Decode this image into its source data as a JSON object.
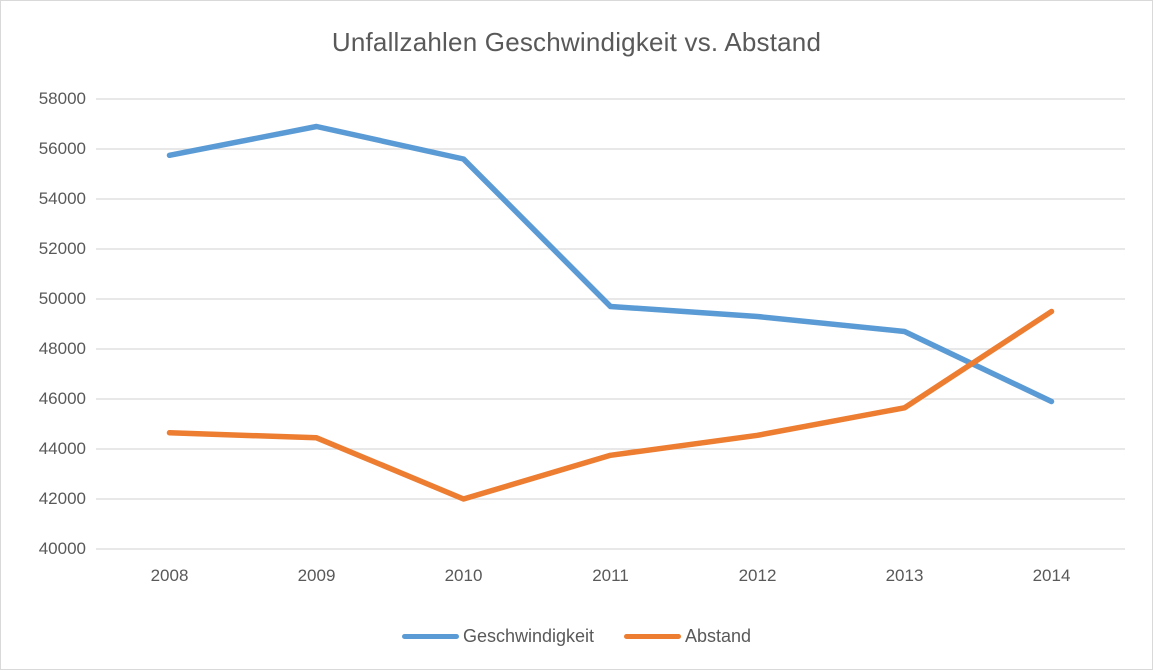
{
  "title": "Unfallzahlen Geschwindigkeit vs. Abstand",
  "colors": {
    "series_geschwindigkeit": "#5B9BD5",
    "series_abstand": "#ED7D31",
    "gridline": "#D9D9D9",
    "text": "#595959",
    "background": "#FFFFFF",
    "chart_border": "#D9D9D9"
  },
  "chart_data": {
    "type": "line",
    "title": "Unfallzahlen Geschwindigkeit vs. Abstand",
    "categories": [
      "2008",
      "2009",
      "2010",
      "2011",
      "2012",
      "2013",
      "2014"
    ],
    "series": [
      {
        "name": "Geschwindigkeit",
        "color": "#5B9BD5",
        "values": [
          55750,
          56900,
          55600,
          49700,
          49300,
          48700,
          45900
        ]
      },
      {
        "name": "Abstand",
        "color": "#ED7D31",
        "values": [
          44650,
          44450,
          42000,
          43750,
          44550,
          45650,
          49500
        ]
      }
    ],
    "xlabel": "",
    "ylabel": "",
    "ylim": [
      40000,
      58000
    ],
    "ytick_step": 2000,
    "ytick_labels": [
      "40000",
      "42000",
      "44000",
      "46000",
      "48000",
      "50000",
      "52000",
      "54000",
      "56000",
      "58000"
    ],
    "grid": true,
    "legend_position": "bottom"
  }
}
